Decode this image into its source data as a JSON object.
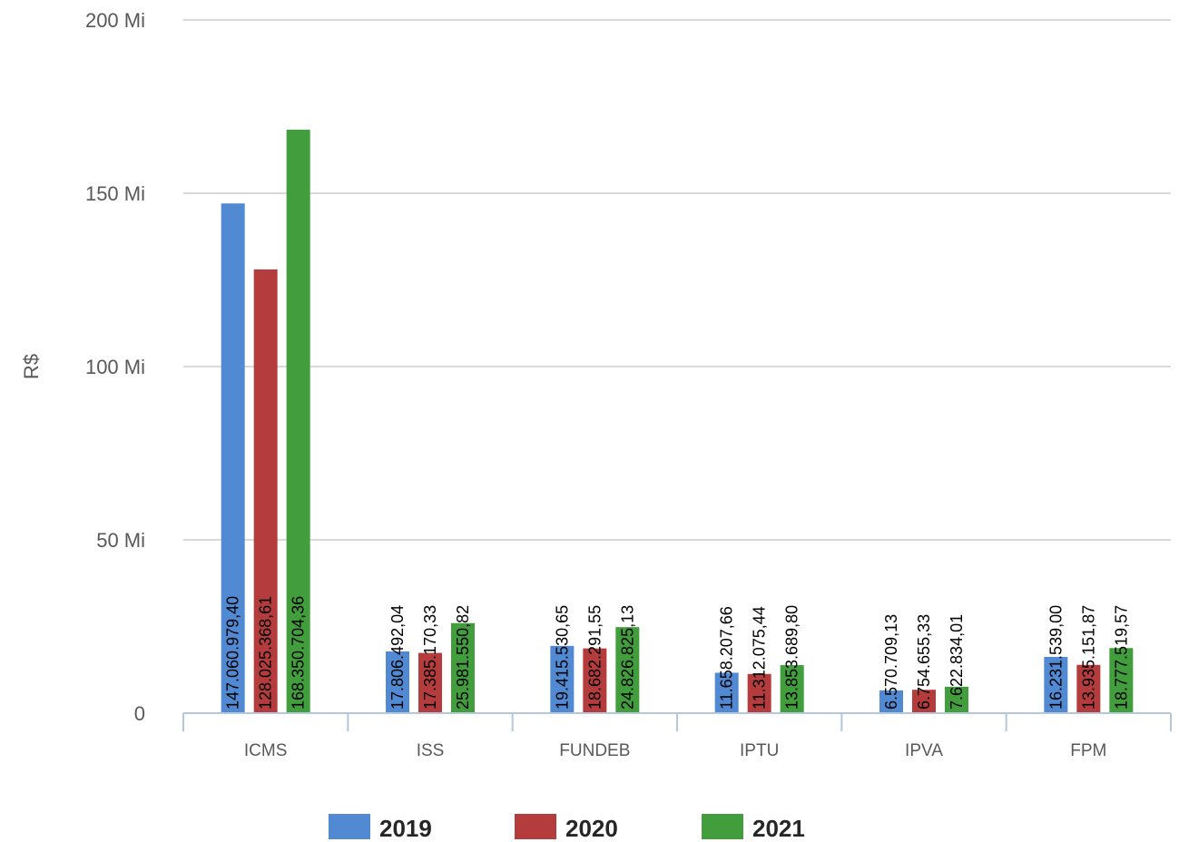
{
  "chart_data": {
    "type": "bar",
    "ylabel": "R$",
    "ylim": [
      0,
      200000000
    ],
    "y_ticks": [
      {
        "value": 0,
        "label": "0"
      },
      {
        "value": 50000000,
        "label": "50 Mi"
      },
      {
        "value": 100000000,
        "label": "100 Mi"
      },
      {
        "value": 150000000,
        "label": "150 Mi"
      },
      {
        "value": 200000000,
        "label": "200 Mi"
      }
    ],
    "grid": true,
    "legend_position": "bottom",
    "categories": [
      "ICMS",
      "ISS",
      "FUNDEB",
      "IPTU",
      "IPVA",
      "FPM"
    ],
    "series": [
      {
        "name": "2019",
        "color": "#5189d3",
        "values": [
          147060979.4,
          17806492.04,
          19415530.65,
          11658207.66,
          6570709.13,
          16231539.0
        ],
        "labels": [
          "147.060.979,40",
          "17.806.492,04",
          "19.415.530,65",
          "11.658.207,66",
          "6.570.709,13",
          "16.231.539,00"
        ]
      },
      {
        "name": "2020",
        "color": "#b53c3c",
        "values": [
          128025368.61,
          17385170.33,
          18682291.55,
          11312075.44,
          6754655.33,
          13935151.87
        ],
        "labels": [
          "128.025.368,61",
          "17.385.170,33",
          "18.682.291,55",
          "11.312.075,44",
          "6.754.655,33",
          "13.935.151,87"
        ]
      },
      {
        "name": "2021",
        "color": "#429d3c",
        "values": [
          168350704.36,
          25981550.82,
          24826825.13,
          13853689.8,
          7622834.01,
          18777519.57
        ],
        "labels": [
          "168.350.704,36",
          "25.981.550,82",
          "24.826.825,13",
          "13.853.689,80",
          "7.622.834,01",
          "18.777.519,57"
        ]
      }
    ]
  }
}
